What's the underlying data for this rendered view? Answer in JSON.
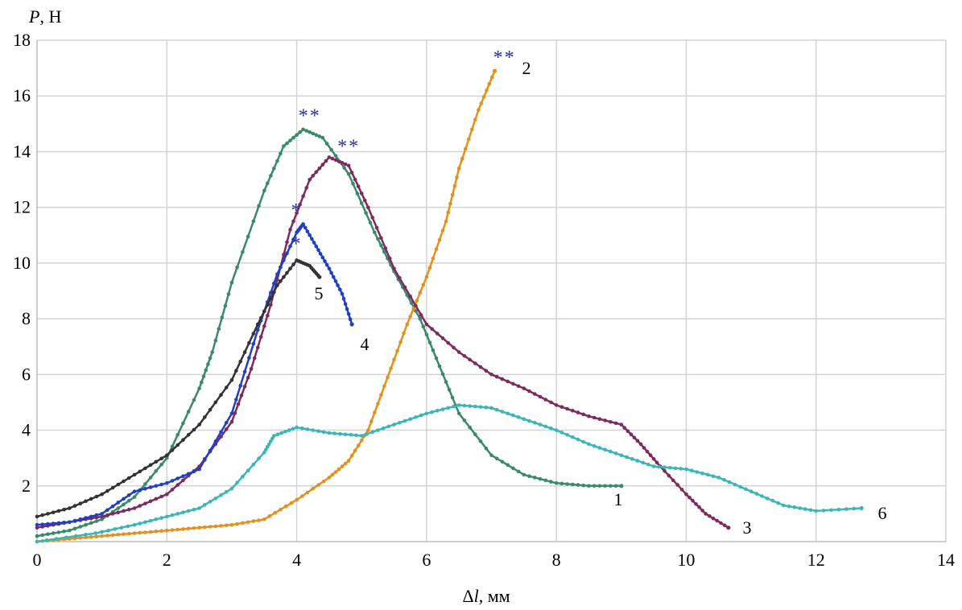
{
  "chart_data": {
    "type": "line",
    "xlabel": "Δl, мм",
    "ylabel": "P, Н",
    "xlim": [
      0,
      14
    ],
    "ylim": [
      0,
      18
    ],
    "x_ticks": [
      0,
      2,
      4,
      6,
      8,
      10,
      12,
      14
    ],
    "y_ticks": [
      2,
      4,
      6,
      8,
      10,
      12,
      14,
      16,
      18
    ],
    "grid": true,
    "series": [
      {
        "name": "1",
        "color": "#3a8a6a",
        "points": [
          [
            0,
            0.2
          ],
          [
            0.5,
            0.4
          ],
          [
            1,
            0.8
          ],
          [
            1.5,
            1.6
          ],
          [
            2,
            3.0
          ],
          [
            2.5,
            5.5
          ],
          [
            2.7,
            6.8
          ],
          [
            3,
            9.3
          ],
          [
            3.5,
            12.6
          ],
          [
            3.8,
            14.2
          ],
          [
            4.1,
            14.8
          ],
          [
            4.4,
            14.5
          ],
          [
            4.8,
            13.2
          ],
          [
            5.2,
            11.1
          ],
          [
            5.5,
            9.7
          ],
          [
            5.9,
            8.0
          ],
          [
            6.2,
            6.3
          ],
          [
            6.5,
            4.6
          ],
          [
            7,
            3.1
          ],
          [
            7.5,
            2.4
          ],
          [
            8,
            2.1
          ],
          [
            8.5,
            2.0
          ],
          [
            9,
            2.0
          ]
        ]
      },
      {
        "name": "2",
        "color": "#e6901c",
        "points": [
          [
            0,
            0.0
          ],
          [
            0.5,
            0.1
          ],
          [
            1,
            0.2
          ],
          [
            1.5,
            0.3
          ],
          [
            2,
            0.4
          ],
          [
            2.5,
            0.5
          ],
          [
            3,
            0.6
          ],
          [
            3.5,
            0.8
          ],
          [
            4,
            1.5
          ],
          [
            4.5,
            2.3
          ],
          [
            4.8,
            2.9
          ],
          [
            5.1,
            4.0
          ],
          [
            5.4,
            5.9
          ],
          [
            5.7,
            7.8
          ],
          [
            6,
            9.5
          ],
          [
            6.3,
            11.5
          ],
          [
            6.5,
            13.4
          ],
          [
            6.8,
            15.5
          ],
          [
            7.05,
            16.9
          ]
        ]
      },
      {
        "name": "3",
        "color": "#7d2a5e",
        "points": [
          [
            0,
            0.5
          ],
          [
            0.5,
            0.7
          ],
          [
            1,
            0.9
          ],
          [
            1.5,
            1.2
          ],
          [
            2,
            1.7
          ],
          [
            2.5,
            2.7
          ],
          [
            3,
            4.3
          ],
          [
            3.3,
            6.2
          ],
          [
            3.6,
            8.5
          ],
          [
            3.9,
            11.2
          ],
          [
            4.2,
            13.0
          ],
          [
            4.5,
            13.8
          ],
          [
            4.8,
            13.5
          ],
          [
            5.1,
            12.0
          ],
          [
            5.5,
            9.8
          ],
          [
            6,
            7.8
          ],
          [
            6.5,
            6.8
          ],
          [
            7,
            6.0
          ],
          [
            7.5,
            5.5
          ],
          [
            8,
            4.9
          ],
          [
            8.5,
            4.5
          ],
          [
            9,
            4.2
          ],
          [
            9.3,
            3.5
          ],
          [
            9.6,
            2.7
          ],
          [
            10,
            1.7
          ],
          [
            10.3,
            1.0
          ],
          [
            10.65,
            0.5
          ]
        ]
      },
      {
        "name": "4",
        "color": "#1f3fc4",
        "points": [
          [
            0,
            0.6
          ],
          [
            0.5,
            0.7
          ],
          [
            1,
            1.0
          ],
          [
            1.5,
            1.8
          ],
          [
            2,
            2.1
          ],
          [
            2.5,
            2.6
          ],
          [
            3,
            4.6
          ],
          [
            3.4,
            7.6
          ],
          [
            3.7,
            9.6
          ],
          [
            4.0,
            11.1
          ],
          [
            4.1,
            11.4
          ],
          [
            4.3,
            10.6
          ],
          [
            4.5,
            9.8
          ],
          [
            4.7,
            8.9
          ],
          [
            4.85,
            7.8
          ]
        ]
      },
      {
        "name": "5",
        "color": "#333333",
        "points": [
          [
            0,
            0.9
          ],
          [
            0.5,
            1.2
          ],
          [
            1,
            1.7
          ],
          [
            1.5,
            2.4
          ],
          [
            2,
            3.1
          ],
          [
            2.5,
            4.2
          ],
          [
            3,
            5.8
          ],
          [
            3.4,
            7.8
          ],
          [
            3.7,
            9.2
          ],
          [
            4.0,
            10.1
          ],
          [
            4.2,
            9.9
          ],
          [
            4.35,
            9.5
          ]
        ]
      },
      {
        "name": "6",
        "color": "#3ab5b8",
        "points": [
          [
            0,
            0.0
          ],
          [
            0.9,
            0.3
          ],
          [
            1.5,
            0.6
          ],
          [
            2,
            0.9
          ],
          [
            2.5,
            1.2
          ],
          [
            3,
            1.9
          ],
          [
            3.5,
            3.2
          ],
          [
            3.65,
            3.8
          ],
          [
            4,
            4.1
          ],
          [
            4.5,
            3.9
          ],
          [
            5,
            3.8
          ],
          [
            5.5,
            4.2
          ],
          [
            6,
            4.6
          ],
          [
            6.5,
            4.9
          ],
          [
            7,
            4.8
          ],
          [
            7.5,
            4.4
          ],
          [
            8,
            4.0
          ],
          [
            8.5,
            3.5
          ],
          [
            9,
            3.1
          ],
          [
            9.5,
            2.7
          ],
          [
            10,
            2.6
          ],
          [
            10.5,
            2.3
          ],
          [
            11,
            1.8
          ],
          [
            11.5,
            1.3
          ],
          [
            12,
            1.1
          ],
          [
            12.7,
            1.2
          ]
        ]
      }
    ],
    "curve_labels": [
      "1",
      "2",
      "3",
      "4",
      "5",
      "6"
    ],
    "markers": [
      {
        "text": "**",
        "x": 4.2,
        "y": 15.3
      },
      {
        "text": "**",
        "x": 4.8,
        "y": 14.2
      },
      {
        "text": "*",
        "x": 4.0,
        "y": 11.9
      },
      {
        "text": "*",
        "x": 4.0,
        "y": 10.7
      },
      {
        "text": "**",
        "x": 7.2,
        "y": 17.4
      }
    ]
  }
}
